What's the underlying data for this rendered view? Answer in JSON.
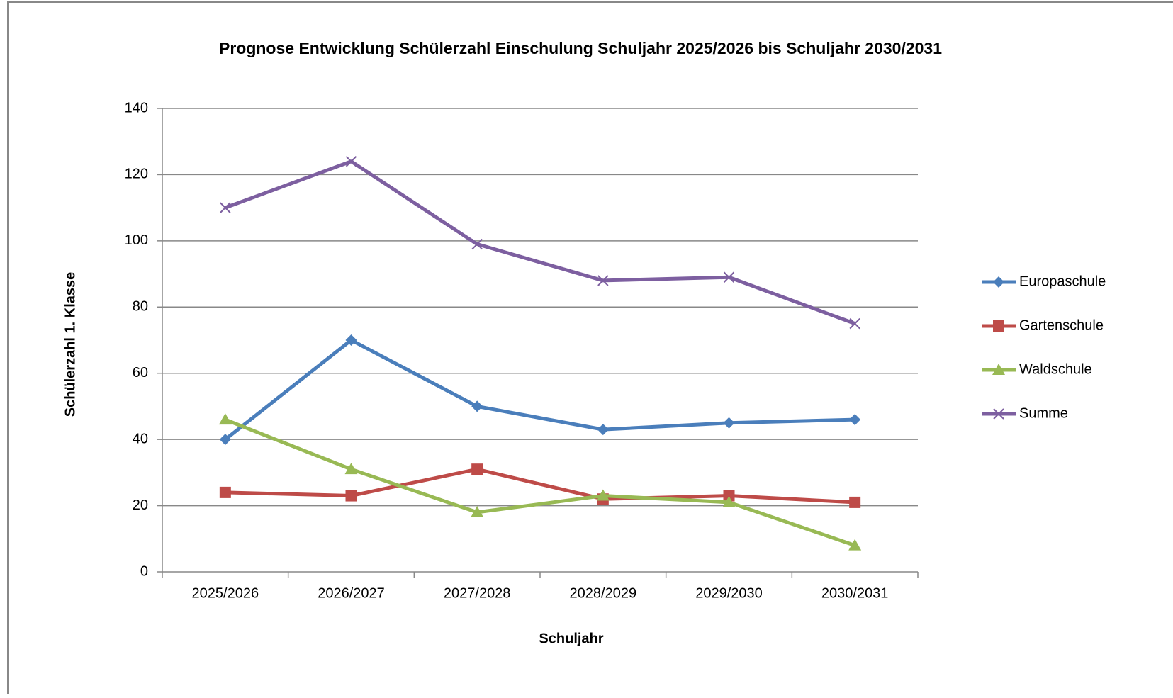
{
  "chart_data": {
    "type": "line",
    "title": "Prognose Entwicklung Schülerzahl Einschulung Schuljahr 2025/2026 bis Schuljahr 2030/2031",
    "x_label": "Schuljahr",
    "y_label": "Schülerzahl 1. Klasse",
    "categories": [
      "2025/2026",
      "2026/2027",
      "2027/2028",
      "2028/2029",
      "2029/2030",
      "2030/2031"
    ],
    "series": [
      {
        "name": "Europaschule",
        "color": "#4a7ebb",
        "marker": "diamond",
        "values": [
          40,
          70,
          50,
          43,
          45,
          46
        ]
      },
      {
        "name": "Gartenschule",
        "color": "#be4b48",
        "marker": "square",
        "values": [
          24,
          23,
          31,
          22,
          23,
          21
        ]
      },
      {
        "name": "Waldschule",
        "color": "#98b954",
        "marker": "triangle",
        "values": [
          46,
          31,
          18,
          23,
          21,
          8
        ]
      },
      {
        "name": "Summe",
        "color": "#7d5fa0",
        "marker": "x",
        "values": [
          110,
          124,
          99,
          88,
          89,
          75
        ]
      }
    ],
    "ylim": [
      0,
      140
    ],
    "yticks": [
      0,
      20,
      40,
      60,
      80,
      100,
      120,
      140
    ],
    "grid": true,
    "legend": "right"
  }
}
